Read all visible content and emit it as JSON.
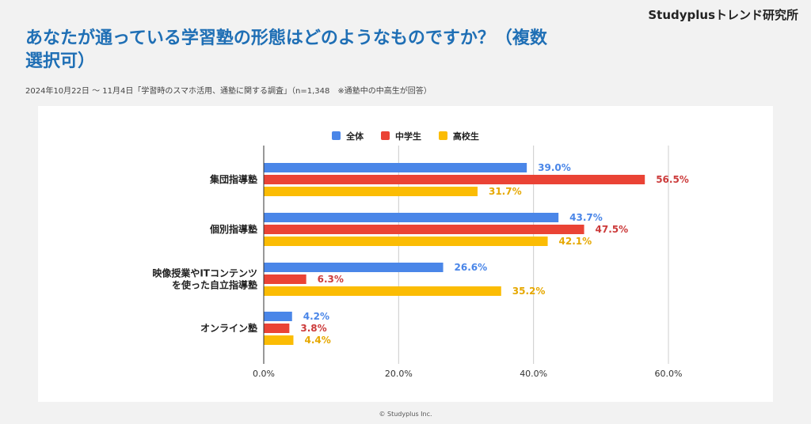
{
  "brand": "Studyplusトレンド研究所",
  "title": "あなたが通っている学習塾の形態はどのようなものですか？（複数選択可）",
  "subtitle": "2024年10月22日 〜 11月4日「学習時のスマホ活用、通塾に関する調査」（n=1,348　※通塾中の中高生が回答）",
  "footer": "© Studyplus Inc.",
  "chart_data": {
    "type": "bar",
    "orientation": "horizontal",
    "categories": [
      [
        "集団指導塾"
      ],
      [
        "個別指導塾"
      ],
      [
        "映像授業やITコンテンツ",
        "を使った自立指導塾"
      ],
      [
        "オンライン塾"
      ]
    ],
    "series": [
      {
        "name": "全体",
        "color": "#4a86e8",
        "values": [
          39.0,
          43.7,
          26.6,
          4.2
        ]
      },
      {
        "name": "中学生",
        "color": "#ea4335",
        "values": [
          56.5,
          47.5,
          6.3,
          3.8
        ]
      },
      {
        "name": "高校生",
        "color": "#fbbc04",
        "values": [
          31.7,
          42.1,
          35.2,
          4.4
        ]
      }
    ],
    "value_label_colors": [
      "#4a86e8",
      "#cc3b3b",
      "#e6a800"
    ],
    "xlim": [
      0,
      60
    ],
    "xticks": [
      "0.0%",
      "20.0%",
      "40.0%",
      "60.0%"
    ],
    "xtick_values": [
      0,
      20,
      40,
      60
    ],
    "grid": true,
    "legend_position": "top-center"
  }
}
